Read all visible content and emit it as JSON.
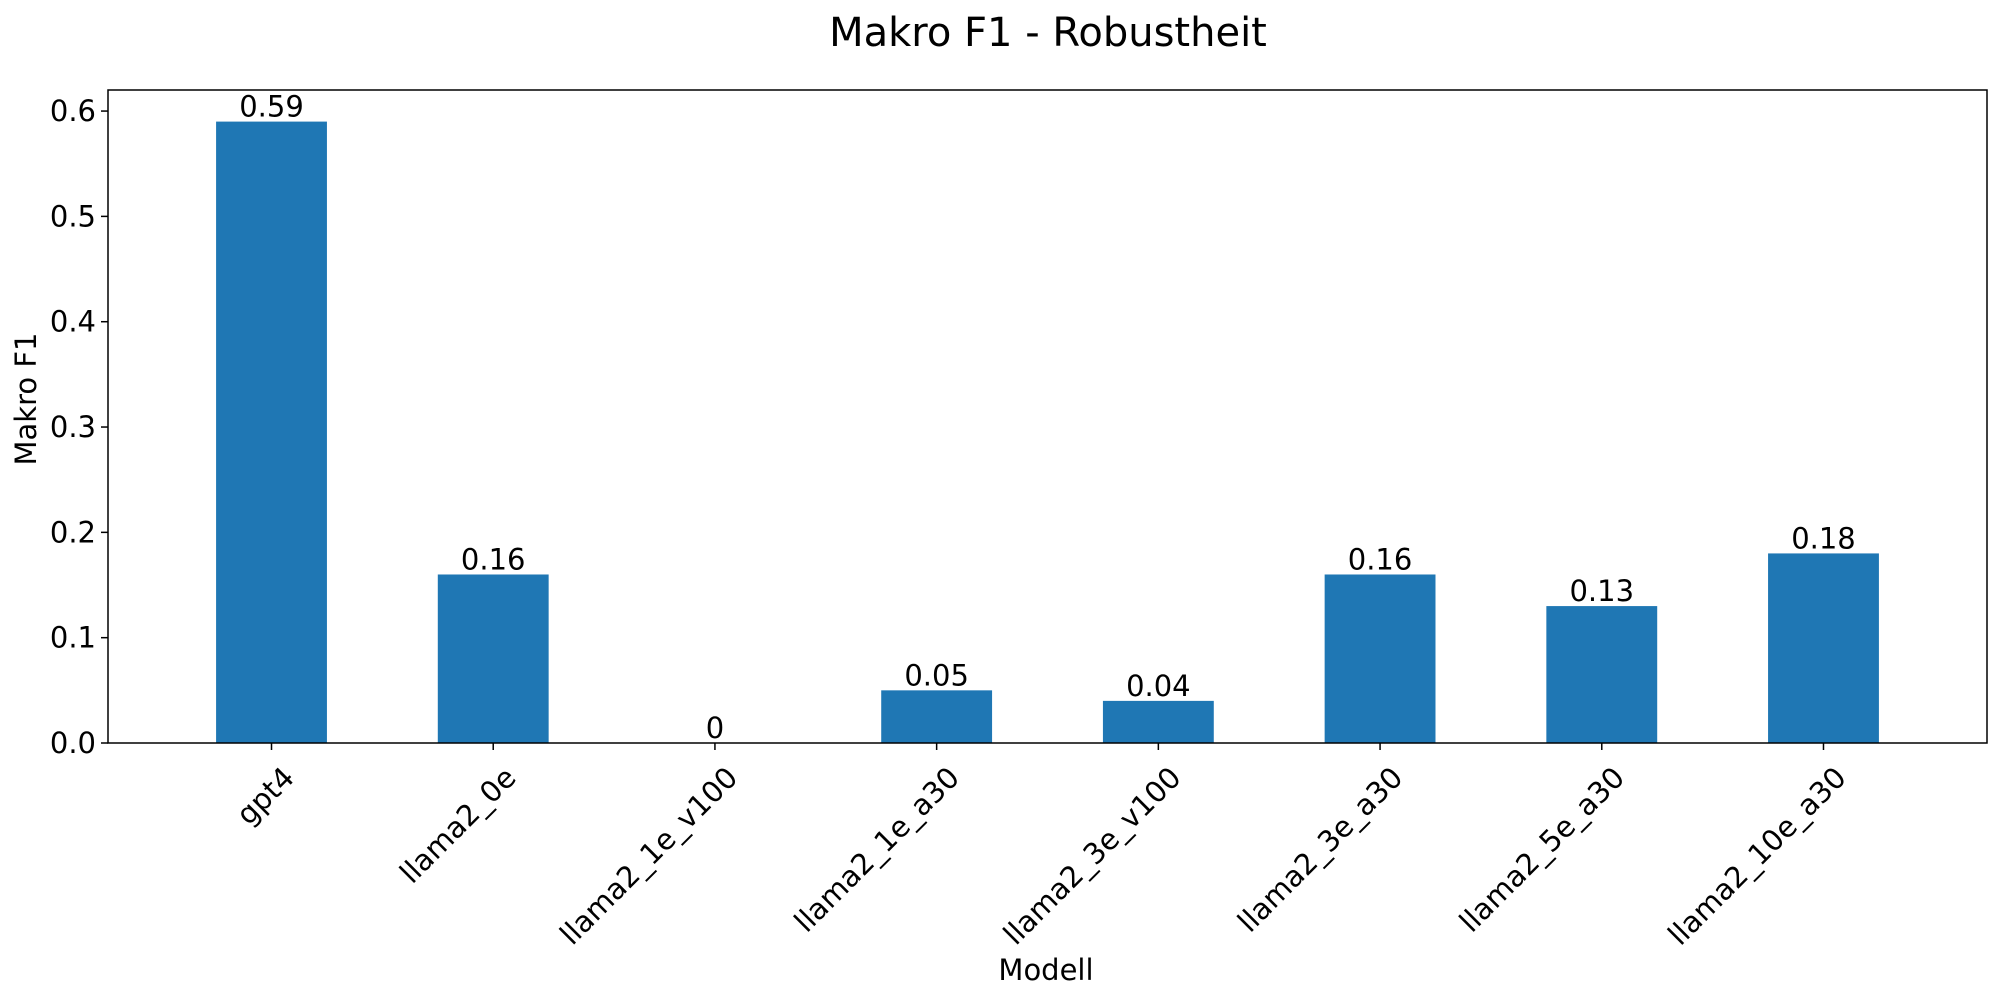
{
  "chart_data": {
    "type": "bar",
    "title": "Makro F1 - Robustheit",
    "xlabel": "Modell",
    "ylabel": "Makro F1",
    "categories": [
      "gpt4",
      "llama2_0e",
      "llama2_1e_v100",
      "llama2_1e_a30",
      "llama2_3e_v100",
      "llama2_3e_a30",
      "llama2_5e_a30",
      "llama2_10e_a30"
    ],
    "values": [
      0.59,
      0.16,
      0,
      0.05,
      0.04,
      0.16,
      0.13,
      0.18
    ],
    "value_labels": [
      "0.59",
      "0.16",
      "0",
      "0.05",
      "0.04",
      "0.16",
      "0.13",
      "0.18"
    ],
    "yticks": [
      0.0,
      0.1,
      0.2,
      0.3,
      0.4,
      0.5,
      0.6
    ],
    "ytick_labels": [
      "0.0",
      "0.1",
      "0.2",
      "0.3",
      "0.4",
      "0.5",
      "0.6"
    ],
    "ylim": [
      0,
      0.62
    ],
    "grid": false,
    "legend": "none",
    "bar_color": "#1f77b4",
    "axis_color": "#000000",
    "background_color": "#ffffff"
  }
}
